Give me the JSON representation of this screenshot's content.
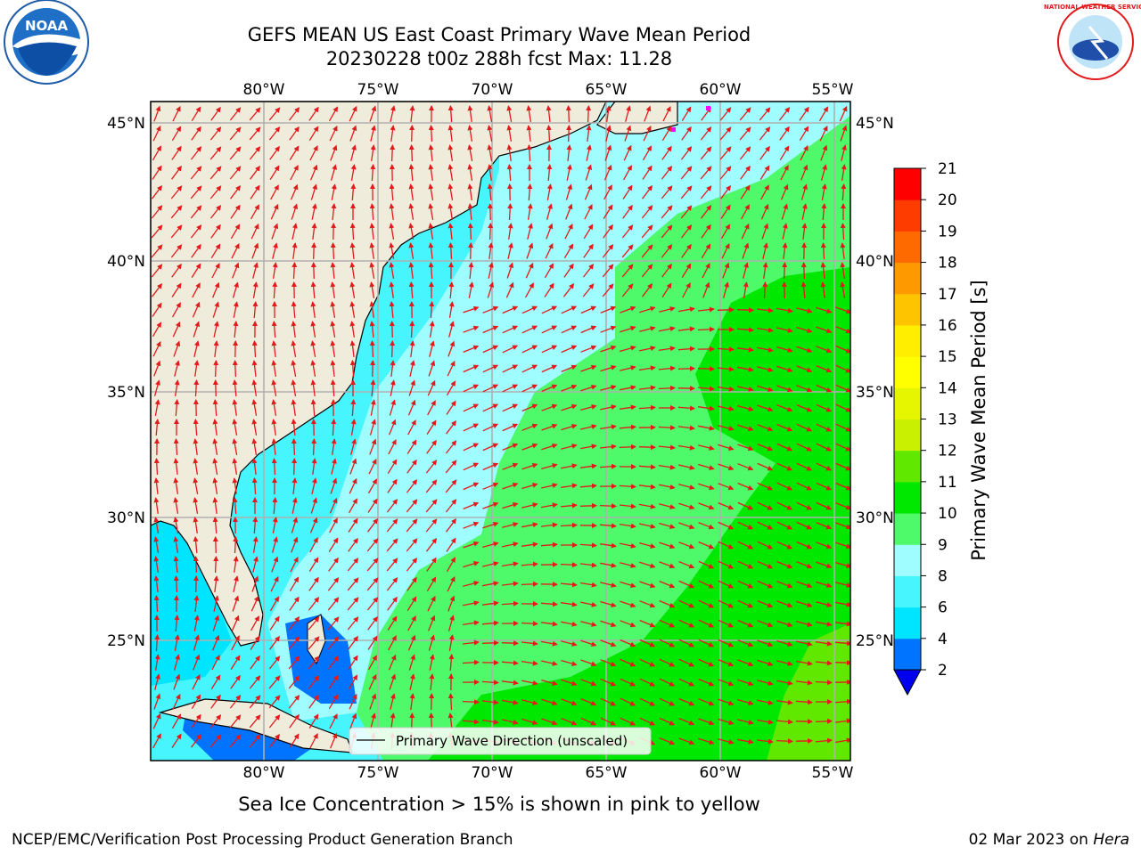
{
  "title": {
    "line1": "GEFS MEAN US East Coast Primary Wave Mean Period",
    "line2": "20230228 t00z 288h fcst   Max: 11.28"
  },
  "logos": {
    "left_org": "NOAA",
    "right_org": "NATIONAL WEATHER SERVICE"
  },
  "map": {
    "lon_labels": [
      "80°W",
      "75°W",
      "70°W",
      "65°W",
      "60°W",
      "55°W"
    ],
    "lat_labels": [
      "45°N",
      "40°N",
      "35°N",
      "30°N",
      "25°N"
    ],
    "land_color": "#efecdc",
    "vector_color": "#e31a1c",
    "legend_label": "Primary Wave Direction (unscaled)"
  },
  "colorbar": {
    "label": "Primary Wave Mean Period [s]",
    "ticks": [
      "2",
      "4",
      "6",
      "8",
      "9",
      "10",
      "11",
      "12",
      "13",
      "14",
      "15",
      "16",
      "17",
      "18",
      "19",
      "20",
      "21"
    ],
    "colors": [
      "#0073ff",
      "#00e5ff",
      "#47f5ff",
      "#9ffcff",
      "#4ffa6a",
      "#00e800",
      "#61e800",
      "#c8f000",
      "#e6f500",
      "#ffff00",
      "#ffee00",
      "#ffc400",
      "#ff9900",
      "#ff6a00",
      "#ff3c00",
      "#ff0000"
    ],
    "under_color": "#0000ee"
  },
  "sea_ice_note": "Sea Ice Concentration > 15% is shown in pink to yellow",
  "footer": {
    "left": "NCEP/EMC/Verification Post Processing Product Generation Branch",
    "right_date": "02 Mar 2023 on ",
    "right_host": "Hera"
  }
}
